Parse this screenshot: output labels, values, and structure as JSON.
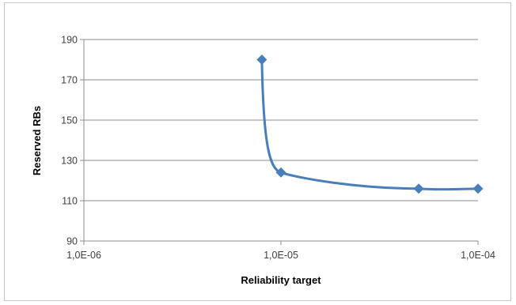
{
  "chart_data": {
    "type": "line",
    "title": "",
    "xlabel": "Reliability target",
    "ylabel": "Reserved RBs",
    "x_scale": "log",
    "xlim": [
      1e-06,
      0.0001
    ],
    "ylim": [
      90,
      190
    ],
    "x_ticks": [
      1e-06,
      1e-05,
      0.0001
    ],
    "x_tick_labels": [
      "1,0E-06",
      "1,0E-05",
      "1,0E-04"
    ],
    "y_ticks": [
      90,
      110,
      130,
      150,
      170,
      190
    ],
    "y_tick_labels": [
      "90",
      "110",
      "130",
      "150",
      "170",
      "190"
    ],
    "grid": "horizontal",
    "legend": "none",
    "series": [
      {
        "x": [
          8e-06,
          1e-05,
          5e-05,
          0.0001
        ],
        "y": [
          180,
          124,
          116,
          116
        ],
        "color": "#4a7ebb",
        "marker": "diamond",
        "smooth": true
      }
    ]
  }
}
